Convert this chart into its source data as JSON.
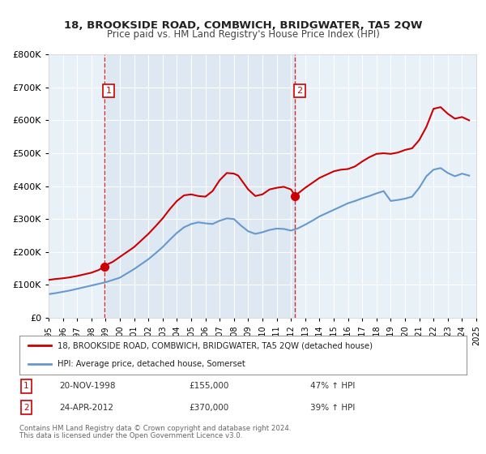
{
  "title": "18, BROOKSIDE ROAD, COMBWICH, BRIDGWATER, TA5 2QW",
  "subtitle": "Price paid vs. HM Land Registry's House Price Index (HPI)",
  "legend_line1": "18, BROOKSIDE ROAD, COMBWICH, BRIDGWATER, TA5 2QW (detached house)",
  "legend_line2": "HPI: Average price, detached house, Somerset",
  "footnote1": "Contains HM Land Registry data © Crown copyright and database right 2024.",
  "footnote2": "This data is licensed under the Open Government Licence v3.0.",
  "sale1_label": "1",
  "sale1_date": "20-NOV-1998",
  "sale1_price": "£155,000",
  "sale1_hpi": "47% ↑ HPI",
  "sale2_label": "2",
  "sale2_date": "24-APR-2012",
  "sale2_price": "£370,000",
  "sale2_hpi": "39% ↑ HPI",
  "sale1_year": 1998.9,
  "sale1_value": 155000,
  "sale2_year": 2012.3,
  "sale2_value": 370000,
  "vline1_year": 1998.9,
  "vline2_year": 2012.3,
  "red_color": "#cc0000",
  "blue_color": "#6699cc",
  "background_plot": "#e8f0f8",
  "background_fig": "#ffffff",
  "grid_color": "#ffffff",
  "ylim": [
    0,
    800000
  ],
  "xlim_start": 1995,
  "xlim_end": 2025,
  "red_x": [
    1995,
    1995.5,
    1996,
    1996.5,
    1997,
    1997.5,
    1998,
    1998.5,
    1998.9,
    1999,
    1999.5,
    2000,
    2000.5,
    2001,
    2001.5,
    2002,
    2002.5,
    2003,
    2003.5,
    2004,
    2004.5,
    2005,
    2005.5,
    2006,
    2006.5,
    2007,
    2007.5,
    2008,
    2008.3,
    2008.5,
    2009,
    2009.5,
    2010,
    2010.5,
    2011,
    2011.5,
    2012,
    2012.3,
    2012.5,
    2013,
    2013.5,
    2014,
    2014.5,
    2015,
    2015.5,
    2016,
    2016.5,
    2017,
    2017.5,
    2018,
    2018.5,
    2019,
    2019.5,
    2020,
    2020.5,
    2021,
    2021.5,
    2022,
    2022.5,
    2023,
    2023.5,
    2024,
    2024.5
  ],
  "red_y": [
    115000,
    118000,
    120000,
    123000,
    127000,
    132000,
    137000,
    145000,
    155000,
    160000,
    170000,
    185000,
    200000,
    215000,
    235000,
    255000,
    278000,
    302000,
    330000,
    355000,
    372000,
    375000,
    370000,
    368000,
    385000,
    418000,
    440000,
    438000,
    432000,
    420000,
    390000,
    370000,
    375000,
    390000,
    395000,
    398000,
    390000,
    370000,
    378000,
    395000,
    410000,
    425000,
    435000,
    445000,
    450000,
    452000,
    460000,
    475000,
    488000,
    498000,
    500000,
    498000,
    502000,
    510000,
    515000,
    540000,
    580000,
    635000,
    640000,
    620000,
    605000,
    610000,
    600000
  ],
  "blue_x": [
    1995,
    1995.5,
    1996,
    1996.5,
    1997,
    1997.5,
    1998,
    1998.5,
    1999,
    1999.5,
    2000,
    2000.5,
    2001,
    2001.5,
    2002,
    2002.5,
    2003,
    2003.5,
    2004,
    2004.5,
    2005,
    2005.5,
    2006,
    2006.5,
    2007,
    2007.5,
    2008,
    2008.5,
    2009,
    2009.5,
    2010,
    2010.5,
    2011,
    2011.5,
    2012,
    2012.5,
    2013,
    2013.5,
    2014,
    2014.5,
    2015,
    2015.5,
    2016,
    2016.5,
    2017,
    2017.5,
    2018,
    2018.5,
    2019,
    2019.5,
    2020,
    2020.5,
    2021,
    2021.5,
    2022,
    2022.5,
    2023,
    2023.5,
    2024,
    2024.5
  ],
  "blue_y": [
    72000,
    75000,
    79000,
    83000,
    88000,
    93000,
    98000,
    103000,
    108000,
    115000,
    122000,
    135000,
    148000,
    163000,
    178000,
    196000,
    215000,
    237000,
    258000,
    275000,
    285000,
    290000,
    287000,
    285000,
    295000,
    302000,
    300000,
    280000,
    263000,
    255000,
    260000,
    267000,
    271000,
    270000,
    265000,
    272000,
    283000,
    295000,
    308000,
    318000,
    328000,
    338000,
    348000,
    355000,
    363000,
    370000,
    378000,
    385000,
    355000,
    358000,
    362000,
    368000,
    395000,
    430000,
    450000,
    455000,
    440000,
    430000,
    438000,
    432000
  ]
}
